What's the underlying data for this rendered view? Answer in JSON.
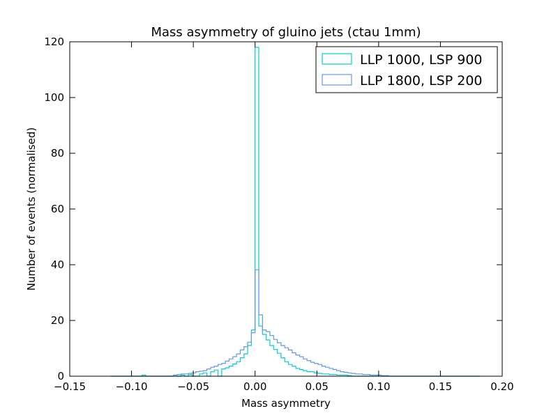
{
  "chart_data": {
    "type": "histogram-step",
    "title": "Mass asymmetry of gluino jets (ctau 1mm)",
    "xlabel": "Mass asymmetry",
    "ylabel": "Number of events (normalised)",
    "xlim": [
      -0.15,
      0.2
    ],
    "ylim": [
      0,
      120
    ],
    "xticks": [
      -0.15,
      -0.1,
      -0.05,
      0.0,
      0.05,
      0.1,
      0.15,
      0.2
    ],
    "xtick_labels": [
      "−0.15",
      "−0.10",
      "−0.05",
      "0.00",
      "0.05",
      "0.10",
      "0.15",
      "0.20"
    ],
    "yticks": [
      0,
      20,
      40,
      60,
      80,
      100,
      120
    ],
    "ytick_labels": [
      "0",
      "20",
      "40",
      "60",
      "80",
      "100",
      "120"
    ],
    "grid": false,
    "legend_position": "top-right",
    "bin_width": 0.003,
    "series": [
      {
        "name": "LLP 1000, LSP 900",
        "color": "#00ced1",
        "bins": [
          [
            -0.0915,
            0.4
          ],
          [
            -0.06,
            0.4
          ],
          [
            -0.054,
            0.6
          ],
          [
            -0.045,
            0.8
          ],
          [
            -0.042,
            1.2
          ],
          [
            -0.036,
            1.6
          ],
          [
            -0.033,
            2.2
          ],
          [
            -0.027,
            2.6
          ],
          [
            -0.024,
            3.0
          ],
          [
            -0.021,
            3.6
          ],
          [
            -0.018,
            4.4
          ],
          [
            -0.015,
            5.2
          ],
          [
            -0.012,
            6.6
          ],
          [
            -0.009,
            8.0
          ],
          [
            -0.006,
            11.0
          ],
          [
            -0.003,
            16.6
          ],
          [
            0.0,
            118.0
          ],
          [
            0.003,
            18.0
          ],
          [
            0.006,
            15.0
          ],
          [
            0.009,
            13.0
          ],
          [
            0.012,
            11.0
          ],
          [
            0.015,
            9.6
          ],
          [
            0.018,
            8.2
          ],
          [
            0.021,
            6.6
          ],
          [
            0.024,
            5.2
          ],
          [
            0.027,
            4.2
          ],
          [
            0.03,
            3.6
          ],
          [
            0.033,
            2.8
          ],
          [
            0.036,
            2.4
          ],
          [
            0.039,
            2.0
          ],
          [
            0.042,
            1.6
          ],
          [
            0.045,
            1.6
          ],
          [
            0.048,
            1.2
          ],
          [
            0.051,
            1.0
          ],
          [
            0.054,
            0.8
          ],
          [
            0.057,
            0.8
          ],
          [
            0.06,
            0.6
          ],
          [
            0.063,
            0.6
          ],
          [
            0.066,
            0.4
          ],
          [
            0.069,
            0.4
          ],
          [
            0.072,
            0.4
          ],
          [
            0.075,
            0.2
          ]
        ]
      },
      {
        "name": "LLP 1800, LSP 200",
        "color": "#6495ed",
        "bins": [
          [
            -0.066,
            0.4
          ],
          [
            -0.063,
            0.6
          ],
          [
            -0.06,
            0.8
          ],
          [
            -0.057,
            0.8
          ],
          [
            -0.054,
            1.0
          ],
          [
            -0.051,
            1.2
          ],
          [
            -0.048,
            1.6
          ],
          [
            -0.045,
            1.8
          ],
          [
            -0.042,
            2.0
          ],
          [
            -0.039,
            2.6
          ],
          [
            -0.036,
            3.2
          ],
          [
            -0.033,
            3.6
          ],
          [
            -0.03,
            4.2
          ],
          [
            -0.027,
            4.6
          ],
          [
            -0.024,
            5.4
          ],
          [
            -0.021,
            6.2
          ],
          [
            -0.018,
            7.0
          ],
          [
            -0.015,
            8.0
          ],
          [
            -0.012,
            9.4
          ],
          [
            -0.009,
            10.6
          ],
          [
            -0.006,
            12.2
          ],
          [
            -0.003,
            15.6
          ],
          [
            0.0,
            38.2
          ],
          [
            0.003,
            22.0
          ],
          [
            0.006,
            16.6
          ],
          [
            0.009,
            16.0
          ],
          [
            0.012,
            14.6
          ],
          [
            0.015,
            13.2
          ],
          [
            0.018,
            12.0
          ],
          [
            0.021,
            11.0
          ],
          [
            0.024,
            10.2
          ],
          [
            0.027,
            9.4
          ],
          [
            0.03,
            8.4
          ],
          [
            0.033,
            7.6
          ],
          [
            0.036,
            7.0
          ],
          [
            0.039,
            6.2
          ],
          [
            0.042,
            5.6
          ],
          [
            0.045,
            5.0
          ],
          [
            0.048,
            4.6
          ],
          [
            0.051,
            4.2
          ],
          [
            0.054,
            3.6
          ],
          [
            0.057,
            3.2
          ],
          [
            0.06,
            2.8
          ],
          [
            0.063,
            2.4
          ],
          [
            0.066,
            2.0
          ],
          [
            0.069,
            1.6
          ],
          [
            0.072,
            1.4
          ],
          [
            0.075,
            1.2
          ],
          [
            0.078,
            1.0
          ],
          [
            0.081,
            0.8
          ],
          [
            0.084,
            0.8
          ],
          [
            0.087,
            0.6
          ],
          [
            0.09,
            0.6
          ],
          [
            0.093,
            0.4
          ],
          [
            0.096,
            0.4
          ],
          [
            0.099,
            0.4
          ],
          [
            0.102,
            0.2
          ],
          [
            0.105,
            0.2
          ]
        ]
      }
    ]
  }
}
